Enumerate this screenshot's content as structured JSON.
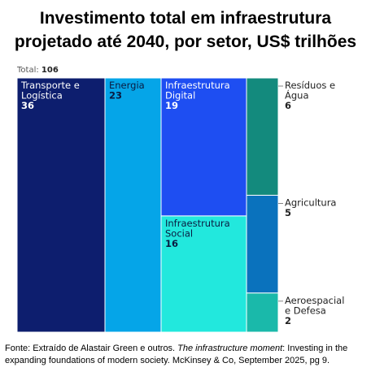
{
  "title": "Investimento total em infraestrutura projetado até 2040, por setor, US$ trilhões",
  "total": {
    "label": "Total:",
    "value": "106"
  },
  "source": {
    "prefix": "Fonte: Extraído de Alastair Green e outros. ",
    "work": "The infrastructure moment",
    "suffix": ": Investing in the expanding foundations of modern society. McKinsey & Co, September 2025, pg 9."
  },
  "chart_data": {
    "type": "treemap",
    "total": 106,
    "groups": [
      {
        "name": "Transporte e Logística",
        "value": 36,
        "color": "#0d1e6e",
        "textColor": "#ffffff"
      },
      {
        "name": "Energia",
        "value": 23,
        "color": "#05a5e8",
        "textColor": "#0a1a40"
      },
      {
        "name": "Infraestrutura Digital",
        "value": 19,
        "color": "#1e4ef2",
        "textColor": "#ffffff"
      },
      {
        "name": "Infraestrutura Social",
        "value": 16,
        "color": "#22e8dd",
        "textColor": "#0a1a40"
      },
      {
        "name": "Resíduos e Água",
        "value": 6,
        "color": "#138a7d",
        "textColor": "#222222"
      },
      {
        "name": "Agricultura",
        "value": 5,
        "color": "#0a72bd",
        "textColor": "#222222"
      },
      {
        "name": "Aeroespacial e Defesa",
        "value": 2,
        "color": "#1ab9aa",
        "textColor": "#222222"
      }
    ]
  }
}
